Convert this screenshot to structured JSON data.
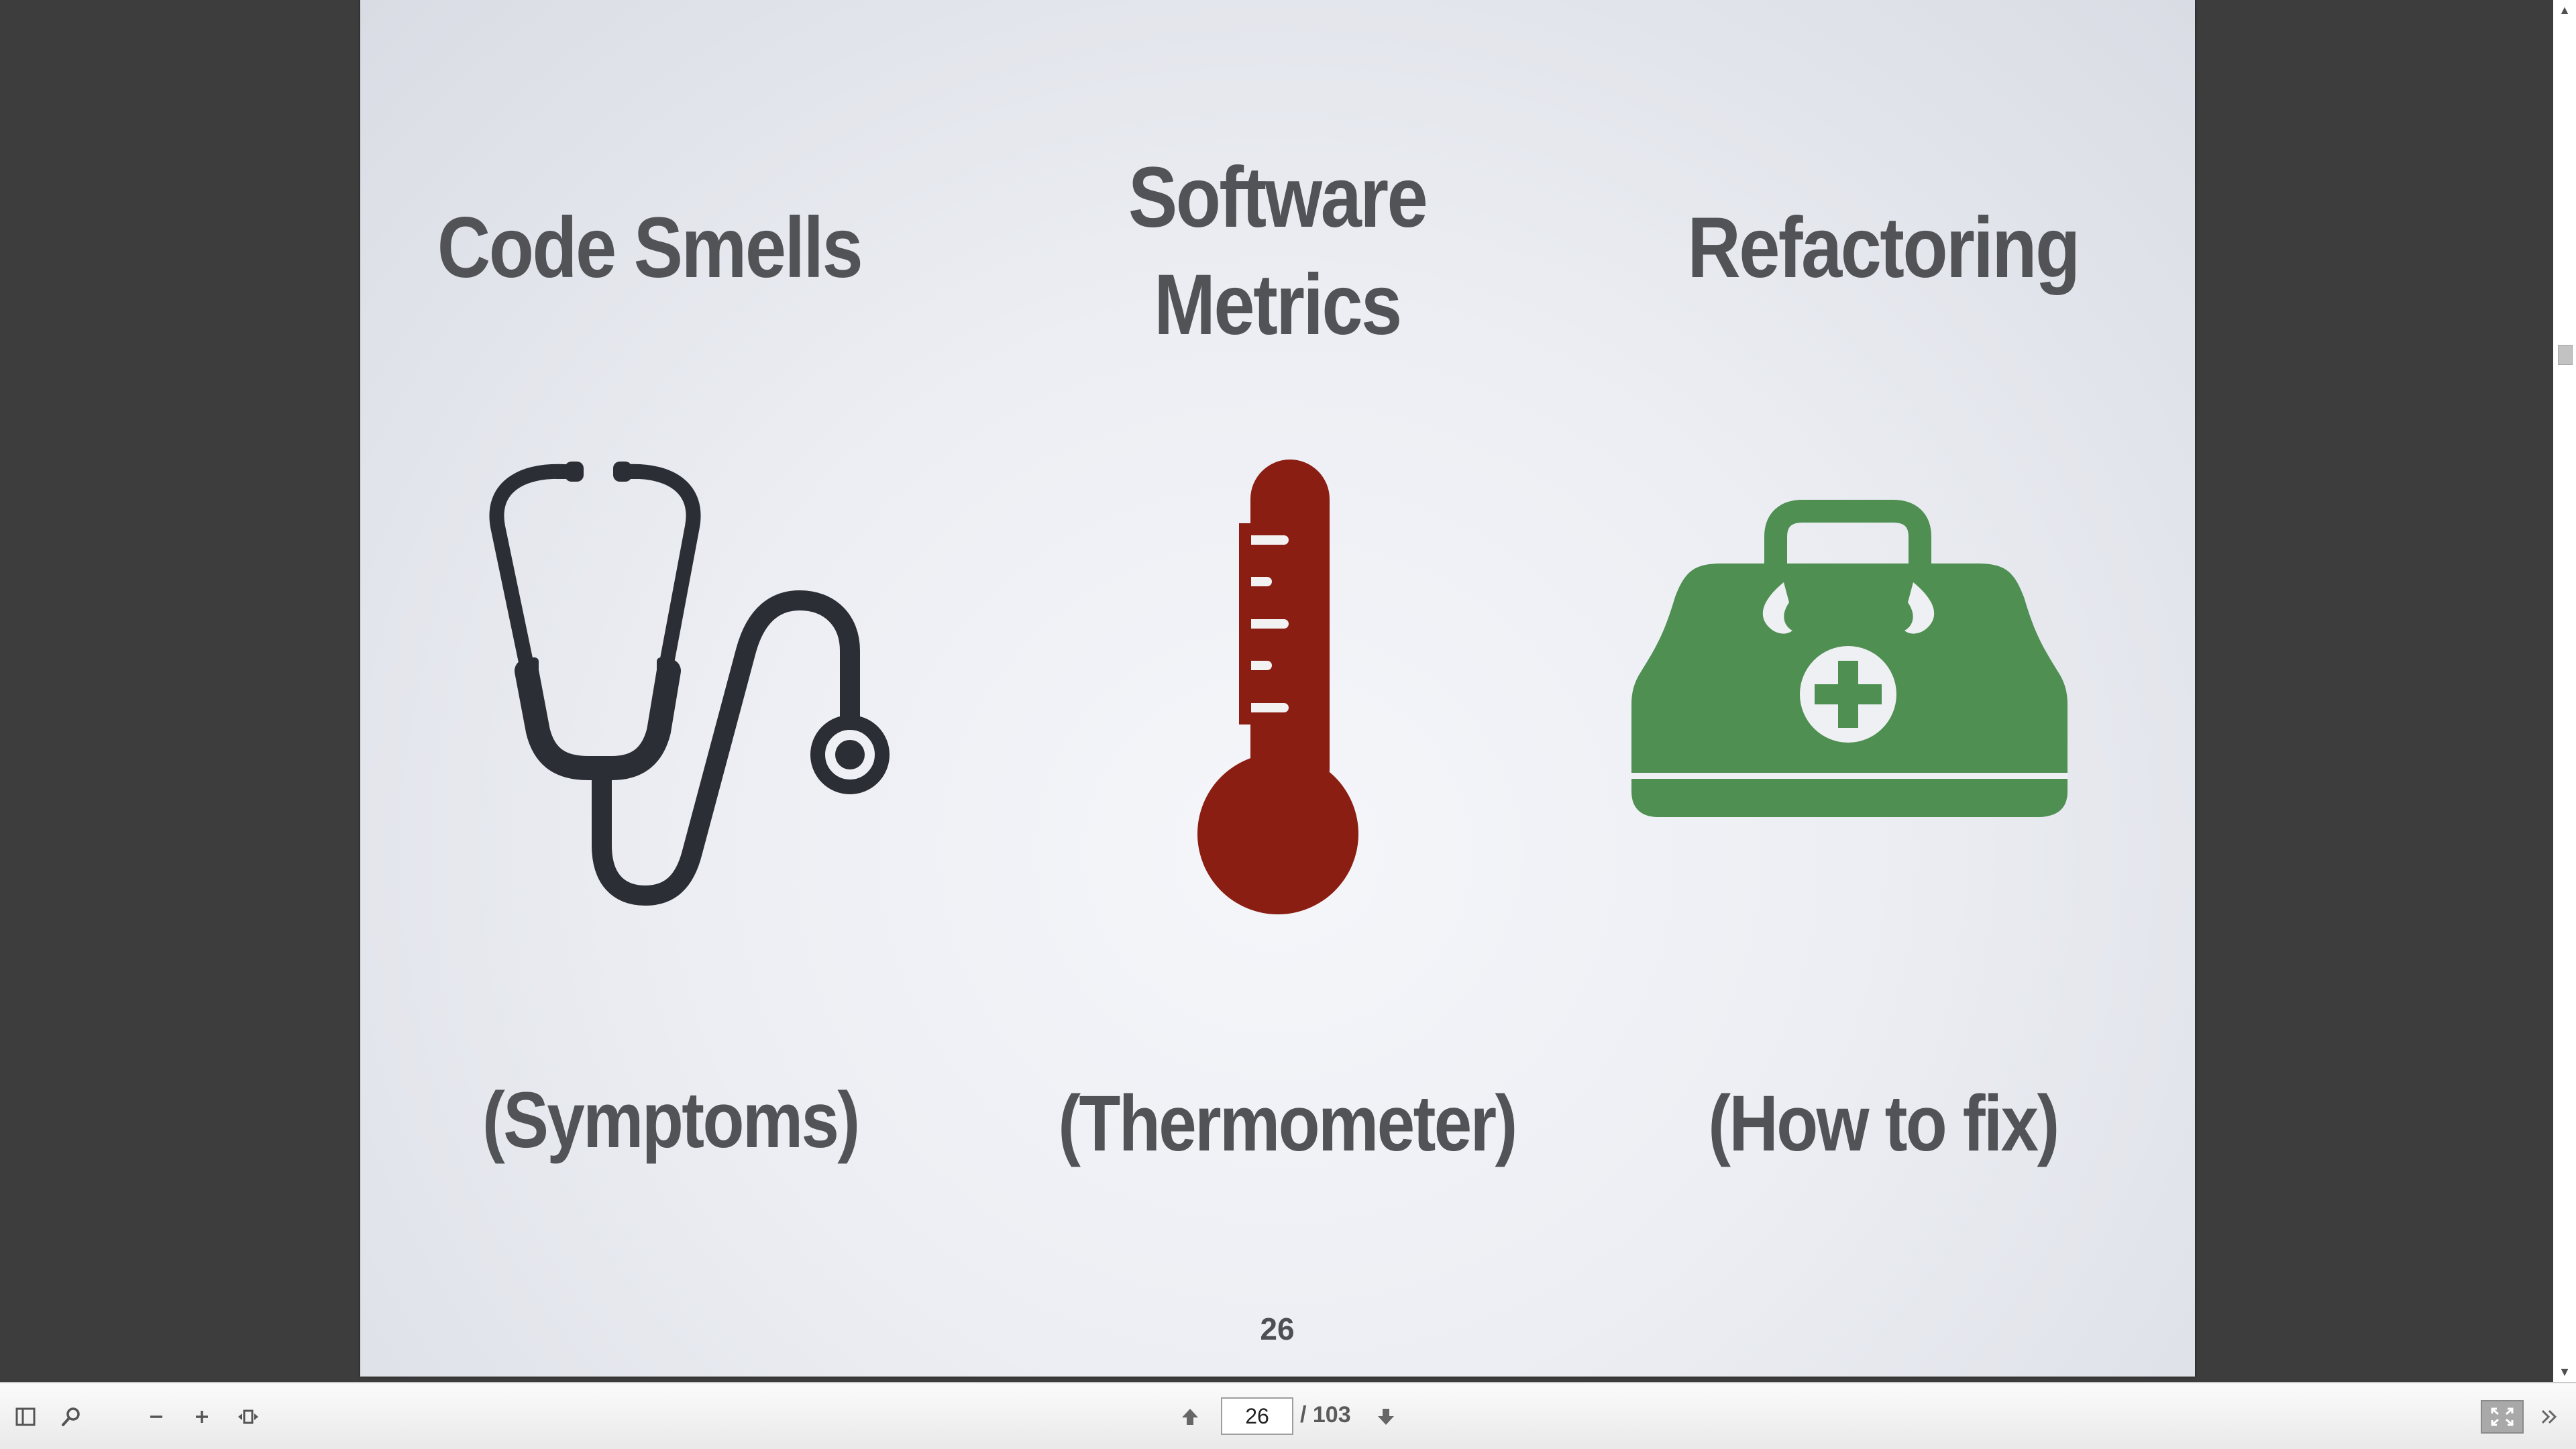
{
  "slide": {
    "columns": [
      {
        "heading": "Code Smells",
        "caption": "(Symptoms)",
        "icon": "stethoscope-icon",
        "icon_color": "#2b2e35"
      },
      {
        "heading_line1": "Software",
        "heading_line2": "Metrics",
        "caption": "(Thermometer)",
        "icon": "thermometer-icon",
        "icon_color": "#8b1e12"
      },
      {
        "heading": "Refactoring",
        "caption": "(How to fix)",
        "icon": "medical-bag-icon",
        "icon_color": "#4f8f52"
      }
    ],
    "page_number": "26"
  },
  "toolbar": {
    "sidebar_toggle_icon": "sidebar-toggle-icon",
    "search_icon": "search-icon",
    "zoom_out_icon": "zoom-out-icon",
    "zoom_in_icon": "zoom-in-icon",
    "fit_page_icon": "fit-page-icon",
    "prev_page_icon": "arrow-up-icon",
    "next_page_icon": "arrow-down-icon",
    "current_page": "26",
    "page_total": "/ 103",
    "fullscreen_icon": "fullscreen-icon",
    "more_icon": "double-chevron-right-icon"
  },
  "scrollbar": {
    "up_arrow": "▲",
    "down_arrow": "▼"
  },
  "colors": {
    "viewer_background": "#3d3d3d",
    "heading_text": "#515356"
  }
}
